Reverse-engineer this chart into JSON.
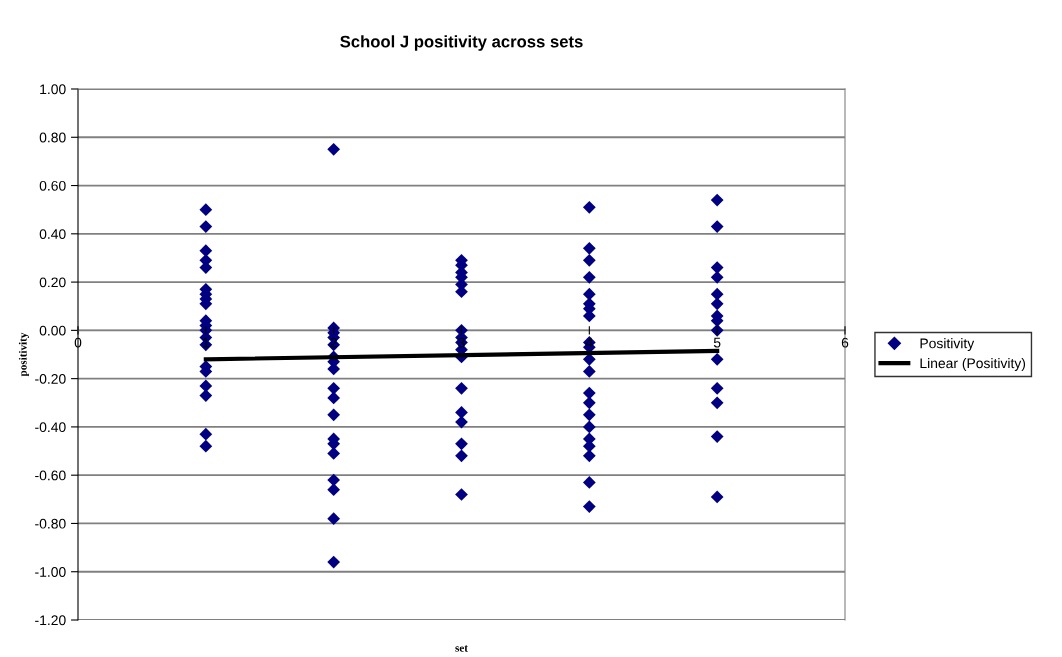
{
  "chart_data": {
    "type": "scatter",
    "title": "School J positivity across sets",
    "xlabel": "set",
    "ylabel": "positivity",
    "series": [
      {
        "name": "Positivity",
        "type": "scatter",
        "color": "#000080",
        "marker": "diamond",
        "x": [
          1,
          1,
          1,
          1,
          1,
          1,
          1,
          1,
          1,
          1,
          1,
          1,
          1,
          1,
          1,
          1,
          1,
          1,
          1,
          1,
          2,
          2,
          2,
          2,
          2,
          2,
          2,
          2,
          2,
          2,
          2,
          2,
          2,
          2,
          2,
          2,
          2,
          2,
          3,
          3,
          3,
          3,
          3,
          3,
          3,
          3,
          3,
          3,
          3,
          3,
          3,
          3,
          3,
          3,
          3,
          4,
          4,
          4,
          4,
          4,
          4,
          4,
          4,
          4,
          4,
          4,
          4,
          4,
          4,
          4,
          4,
          4,
          4,
          4,
          4,
          4,
          5,
          5,
          5,
          5,
          5,
          5,
          5,
          5,
          5,
          5,
          5,
          5,
          5,
          5
        ],
        "values": [
          0.5,
          0.43,
          0.33,
          0.29,
          0.26,
          0.17,
          0.15,
          0.13,
          0.11,
          0.04,
          0.02,
          0.0,
          -0.03,
          -0.06,
          -0.15,
          -0.17,
          -0.23,
          -0.27,
          -0.43,
          -0.48,
          0.75,
          0.01,
          -0.01,
          -0.03,
          -0.06,
          -0.11,
          -0.13,
          -0.16,
          -0.24,
          -0.28,
          -0.35,
          -0.45,
          -0.47,
          -0.51,
          -0.62,
          -0.66,
          -0.78,
          -0.96,
          0.29,
          0.27,
          0.24,
          0.22,
          0.19,
          0.16,
          0.0,
          -0.03,
          -0.05,
          -0.08,
          -0.11,
          -0.24,
          -0.34,
          -0.38,
          -0.47,
          -0.52,
          -0.68,
          0.51,
          0.34,
          0.29,
          0.22,
          0.15,
          0.11,
          0.09,
          0.06,
          -0.05,
          -0.07,
          -0.12,
          -0.17,
          -0.26,
          -0.3,
          -0.35,
          -0.4,
          -0.45,
          -0.48,
          -0.52,
          -0.63,
          -0.73,
          0.54,
          0.43,
          0.26,
          0.22,
          0.15,
          0.11,
          0.06,
          0.04,
          0.0,
          -0.12,
          -0.24,
          -0.3,
          -0.44,
          -0.69
        ]
      },
      {
        "name": "Linear (Positivity)",
        "type": "line",
        "color": "#000000",
        "marker": "none",
        "line_style": "solid",
        "x": [
          1,
          5
        ],
        "values": [
          -0.12,
          -0.085
        ]
      }
    ],
    "xlim": [
      0,
      6
    ],
    "xticks": [
      0,
      1,
      2,
      3,
      4,
      5,
      6
    ],
    "ylim": [
      -1.2,
      1.0
    ],
    "yticks": [
      {
        "value": 1.0,
        "label": "1.00"
      },
      {
        "value": 0.8,
        "label": "0.80"
      },
      {
        "value": 0.6,
        "label": "0.60"
      },
      {
        "value": 0.4,
        "label": "0.40"
      },
      {
        "value": 0.2,
        "label": "0.20"
      },
      {
        "value": 0.0,
        "label": "0.00"
      },
      {
        "value": -0.2,
        "label": "-0.20"
      },
      {
        "value": -0.4,
        "label": "-0.40"
      },
      {
        "value": -0.6,
        "label": "-0.60"
      },
      {
        "value": -0.8,
        "label": "-0.80"
      },
      {
        "value": -1.0,
        "label": "-1.00"
      },
      {
        "value": -1.2,
        "label": "-1.20"
      }
    ],
    "grid": "y",
    "legend": "right"
  }
}
